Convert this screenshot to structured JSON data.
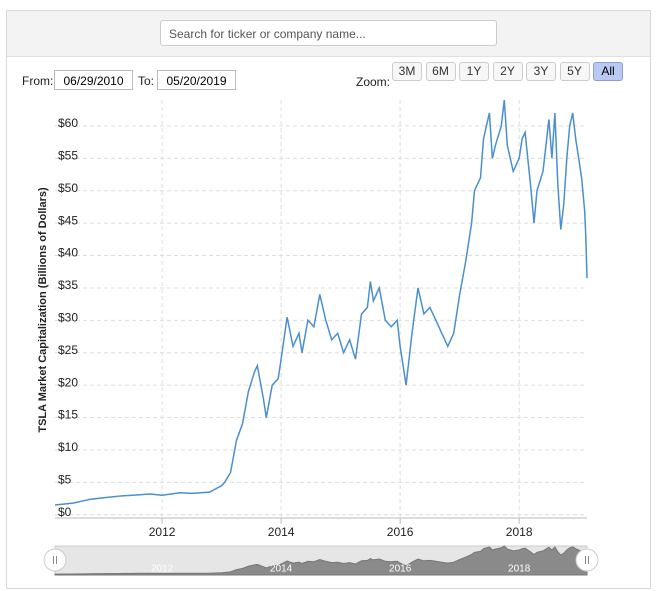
{
  "search": {
    "placeholder": "Search for ticker or company name..."
  },
  "range": {
    "from_label": "From:",
    "from": "06/29/2010",
    "to_label": "To:",
    "to": "05/20/2019"
  },
  "zoom": {
    "label": "Zoom:",
    "buttons": [
      "3M",
      "6M",
      "1Y",
      "2Y",
      "3Y",
      "5Y",
      "All"
    ],
    "active": 6
  },
  "chart_data": {
    "type": "line",
    "y_label": "TSLA Market Capitalization (Billions of Dollars)",
    "color": "#4a8fcf",
    "x": [
      2010.2,
      2010.5,
      2010.8,
      2011.0,
      2011.3,
      2011.5,
      2011.8,
      2012.0,
      2012.3,
      2012.5,
      2012.8,
      2013.0,
      2013.05,
      2013.15,
      2013.25,
      2013.35,
      2013.45,
      2013.55,
      2013.6,
      2013.7,
      2013.75,
      2013.85,
      2013.95,
      2014.0,
      2014.1,
      2014.2,
      2014.3,
      2014.35,
      2014.45,
      2014.55,
      2014.65,
      2014.75,
      2014.85,
      2014.95,
      2015.05,
      2015.15,
      2015.25,
      2015.35,
      2015.45,
      2015.5,
      2015.55,
      2015.65,
      2015.75,
      2015.85,
      2015.95,
      2016.0,
      2016.1,
      2016.2,
      2016.3,
      2016.4,
      2016.5,
      2016.6,
      2016.7,
      2016.8,
      2016.9,
      2017.0,
      2017.1,
      2017.2,
      2017.25,
      2017.35,
      2017.4,
      2017.45,
      2017.5,
      2017.55,
      2017.6,
      2017.7,
      2017.75,
      2017.8,
      2017.9,
      2018.0,
      2018.05,
      2018.1,
      2018.2,
      2018.25,
      2018.3,
      2018.4,
      2018.5,
      2018.55,
      2018.6,
      2018.65,
      2018.7,
      2018.75,
      2018.8,
      2018.85,
      2018.9,
      2018.95,
      2019.0,
      2019.05,
      2019.1,
      2019.12,
      2019.14
    ],
    "values": [
      1.5,
      1.8,
      2.4,
      2.6,
      2.9,
      3.0,
      3.2,
      3.0,
      3.4,
      3.3,
      3.5,
      4.5,
      5,
      6.5,
      11.5,
      14,
      19,
      22,
      23,
      18,
      15,
      20,
      21,
      24,
      30.5,
      26,
      28,
      25,
      30,
      29,
      34,
      30,
      27,
      28,
      25,
      27,
      24,
      31,
      32,
      36,
      33,
      35,
      30,
      29,
      30,
      26,
      20,
      28,
      35,
      31,
      32,
      30,
      28,
      26,
      28,
      34,
      39,
      45,
      50,
      52,
      58,
      60,
      62,
      55,
      57,
      60,
      64,
      57,
      53,
      55,
      58,
      59,
      50,
      45,
      50,
      53,
      61,
      55,
      62,
      51,
      44,
      48,
      55,
      60,
      62,
      58,
      55,
      52,
      47,
      43,
      36.5
    ],
    "xlim": [
      2010.2,
      2019.14
    ],
    "xticks": [
      2012,
      2014,
      2016,
      2018
    ],
    "ylim": [
      -0.5,
      64
    ],
    "yticks": [
      {
        "value": 0,
        "label": "$0"
      },
      {
        "value": 5,
        "label": "$5"
      },
      {
        "value": 10,
        "label": "$10"
      },
      {
        "value": 15,
        "label": "$15"
      },
      {
        "value": 20,
        "label": "$20"
      },
      {
        "value": 25,
        "label": "$25"
      },
      {
        "value": 30,
        "label": "$30"
      },
      {
        "value": 35,
        "label": "$35"
      },
      {
        "value": 40,
        "label": "$40"
      },
      {
        "value": 45,
        "label": "$45"
      },
      {
        "value": 50,
        "label": "$50"
      },
      {
        "value": 55,
        "label": "$55"
      },
      {
        "value": 60,
        "label": "$60"
      }
    ],
    "grid": true
  }
}
